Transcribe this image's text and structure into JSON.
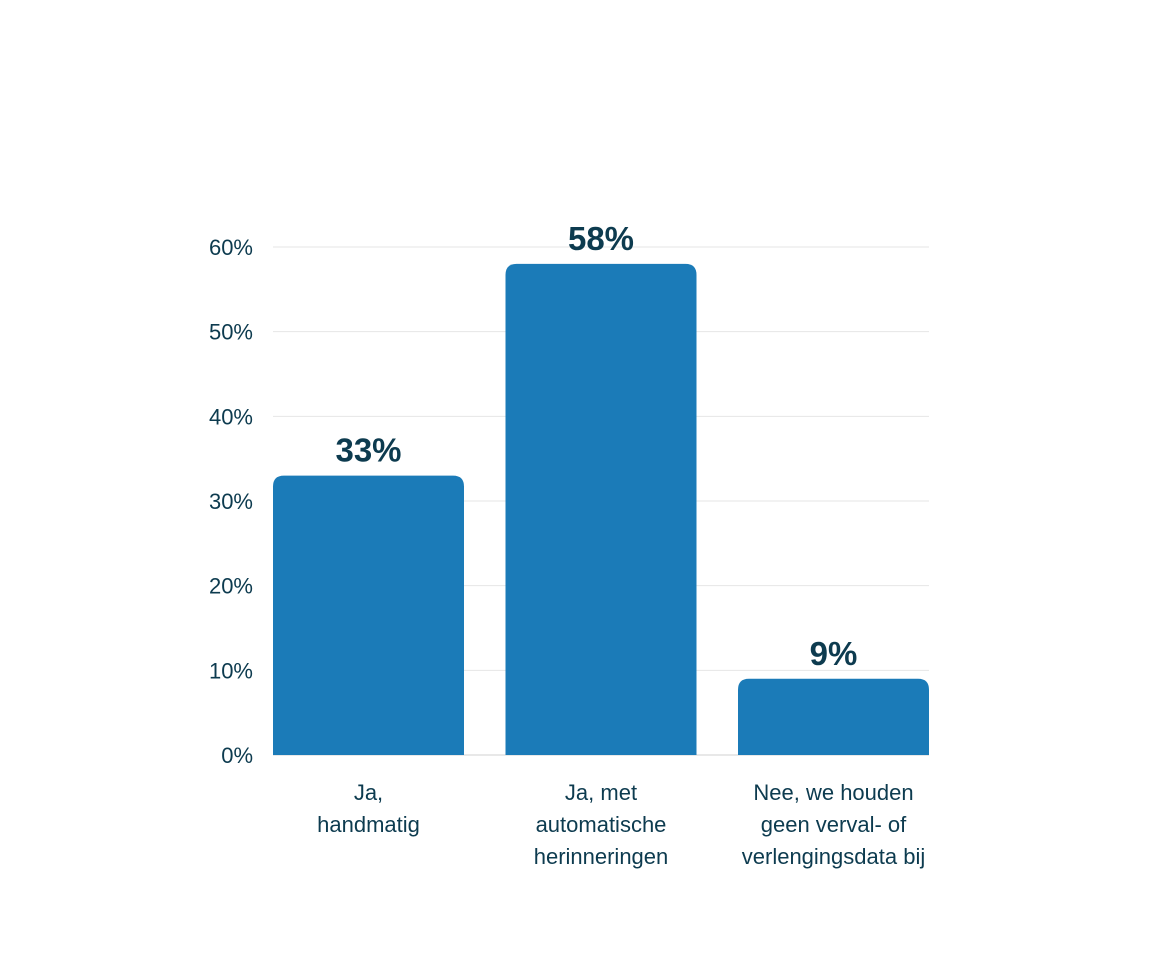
{
  "chart_data": {
    "type": "bar",
    "categories": [
      [
        "Ja,",
        "handmatig"
      ],
      [
        "Ja, met",
        "automatische",
        "herinneringen"
      ],
      [
        "Nee, we houden",
        "geen verval- of",
        "verlengingsdata bij"
      ]
    ],
    "values": [
      33,
      58,
      9
    ],
    "data_labels": [
      "33%",
      "58%",
      "9%"
    ],
    "y_ticks": [
      0,
      10,
      20,
      30,
      40,
      50,
      60
    ],
    "y_tick_labels": [
      "0%",
      "10%",
      "20%",
      "30%",
      "40%",
      "50%",
      "60%"
    ],
    "ylim": [
      0,
      60
    ],
    "grid": true,
    "colors": {
      "bar": "#1b7bb8",
      "text": "#0d3b4f",
      "grid": "#e6e6e6",
      "axis": "#d0d0d0"
    }
  }
}
